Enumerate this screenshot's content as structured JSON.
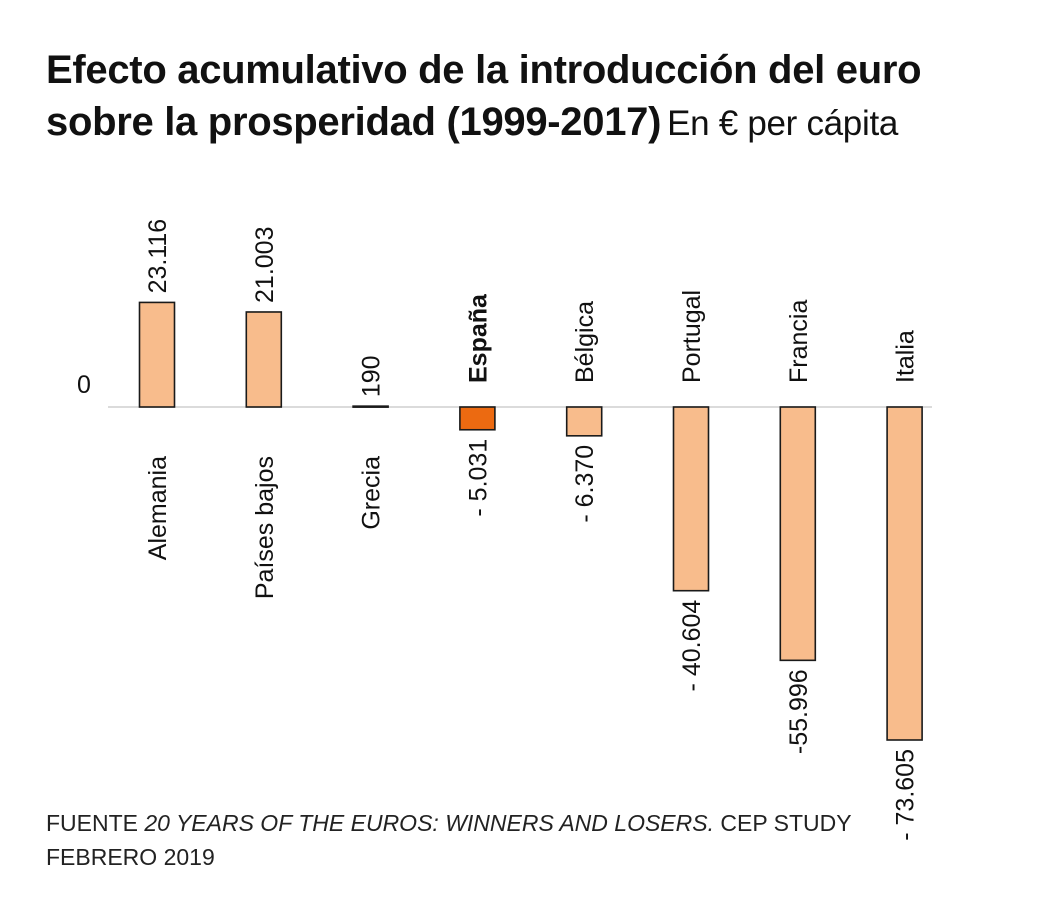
{
  "title": {
    "main": "Efecto acumulativo de la introducción del euro sobre la prosperidad (1999-2017)",
    "unit": "En € per cápita"
  },
  "source": {
    "prefix": "FUENTE ",
    "work": "20 YEARS OF THE EUROS: WINNERS AND LOSERS.",
    "suffix": " CEP STUDY FEBRERO 2019"
  },
  "chart_data": {
    "type": "bar",
    "categories": [
      "Alemania",
      "Países bajos",
      "Grecia",
      "España",
      "Bélgica",
      "Portugal",
      "Francia",
      "Italia"
    ],
    "values": [
      23116,
      21003,
      190,
      -5031,
      -6370,
      -40604,
      -55996,
      -73605
    ],
    "value_labels": [
      "23.116",
      "21.003",
      "190",
      "- 5.031",
      "- 6.370",
      "- 40.604",
      "-55.996",
      "- 73.605"
    ],
    "highlight": "España",
    "zero_label": "0",
    "colors": {
      "bar": "#f8bc8c",
      "highlight": "#ec6a11",
      "stroke": "#1a1a1a",
      "baseline": "#cfcfcf"
    }
  }
}
